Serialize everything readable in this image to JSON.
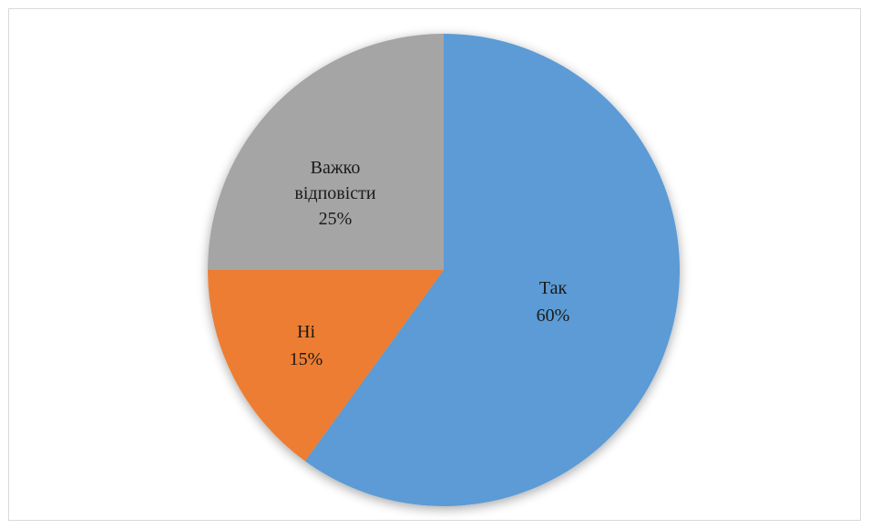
{
  "chart_data": {
    "type": "pie",
    "title": "",
    "categories": [
      "Так",
      "Ні",
      "Важко відповісти"
    ],
    "values": [
      60,
      15,
      25
    ],
    "labels": [
      "60%",
      "15%",
      "25%"
    ],
    "colors": [
      "#5B9BD5",
      "#ED7D31",
      "#A5A5A5"
    ],
    "start_angle_deg": 0,
    "direction": "clockwise",
    "legend": "none",
    "data_labels": "inside"
  }
}
